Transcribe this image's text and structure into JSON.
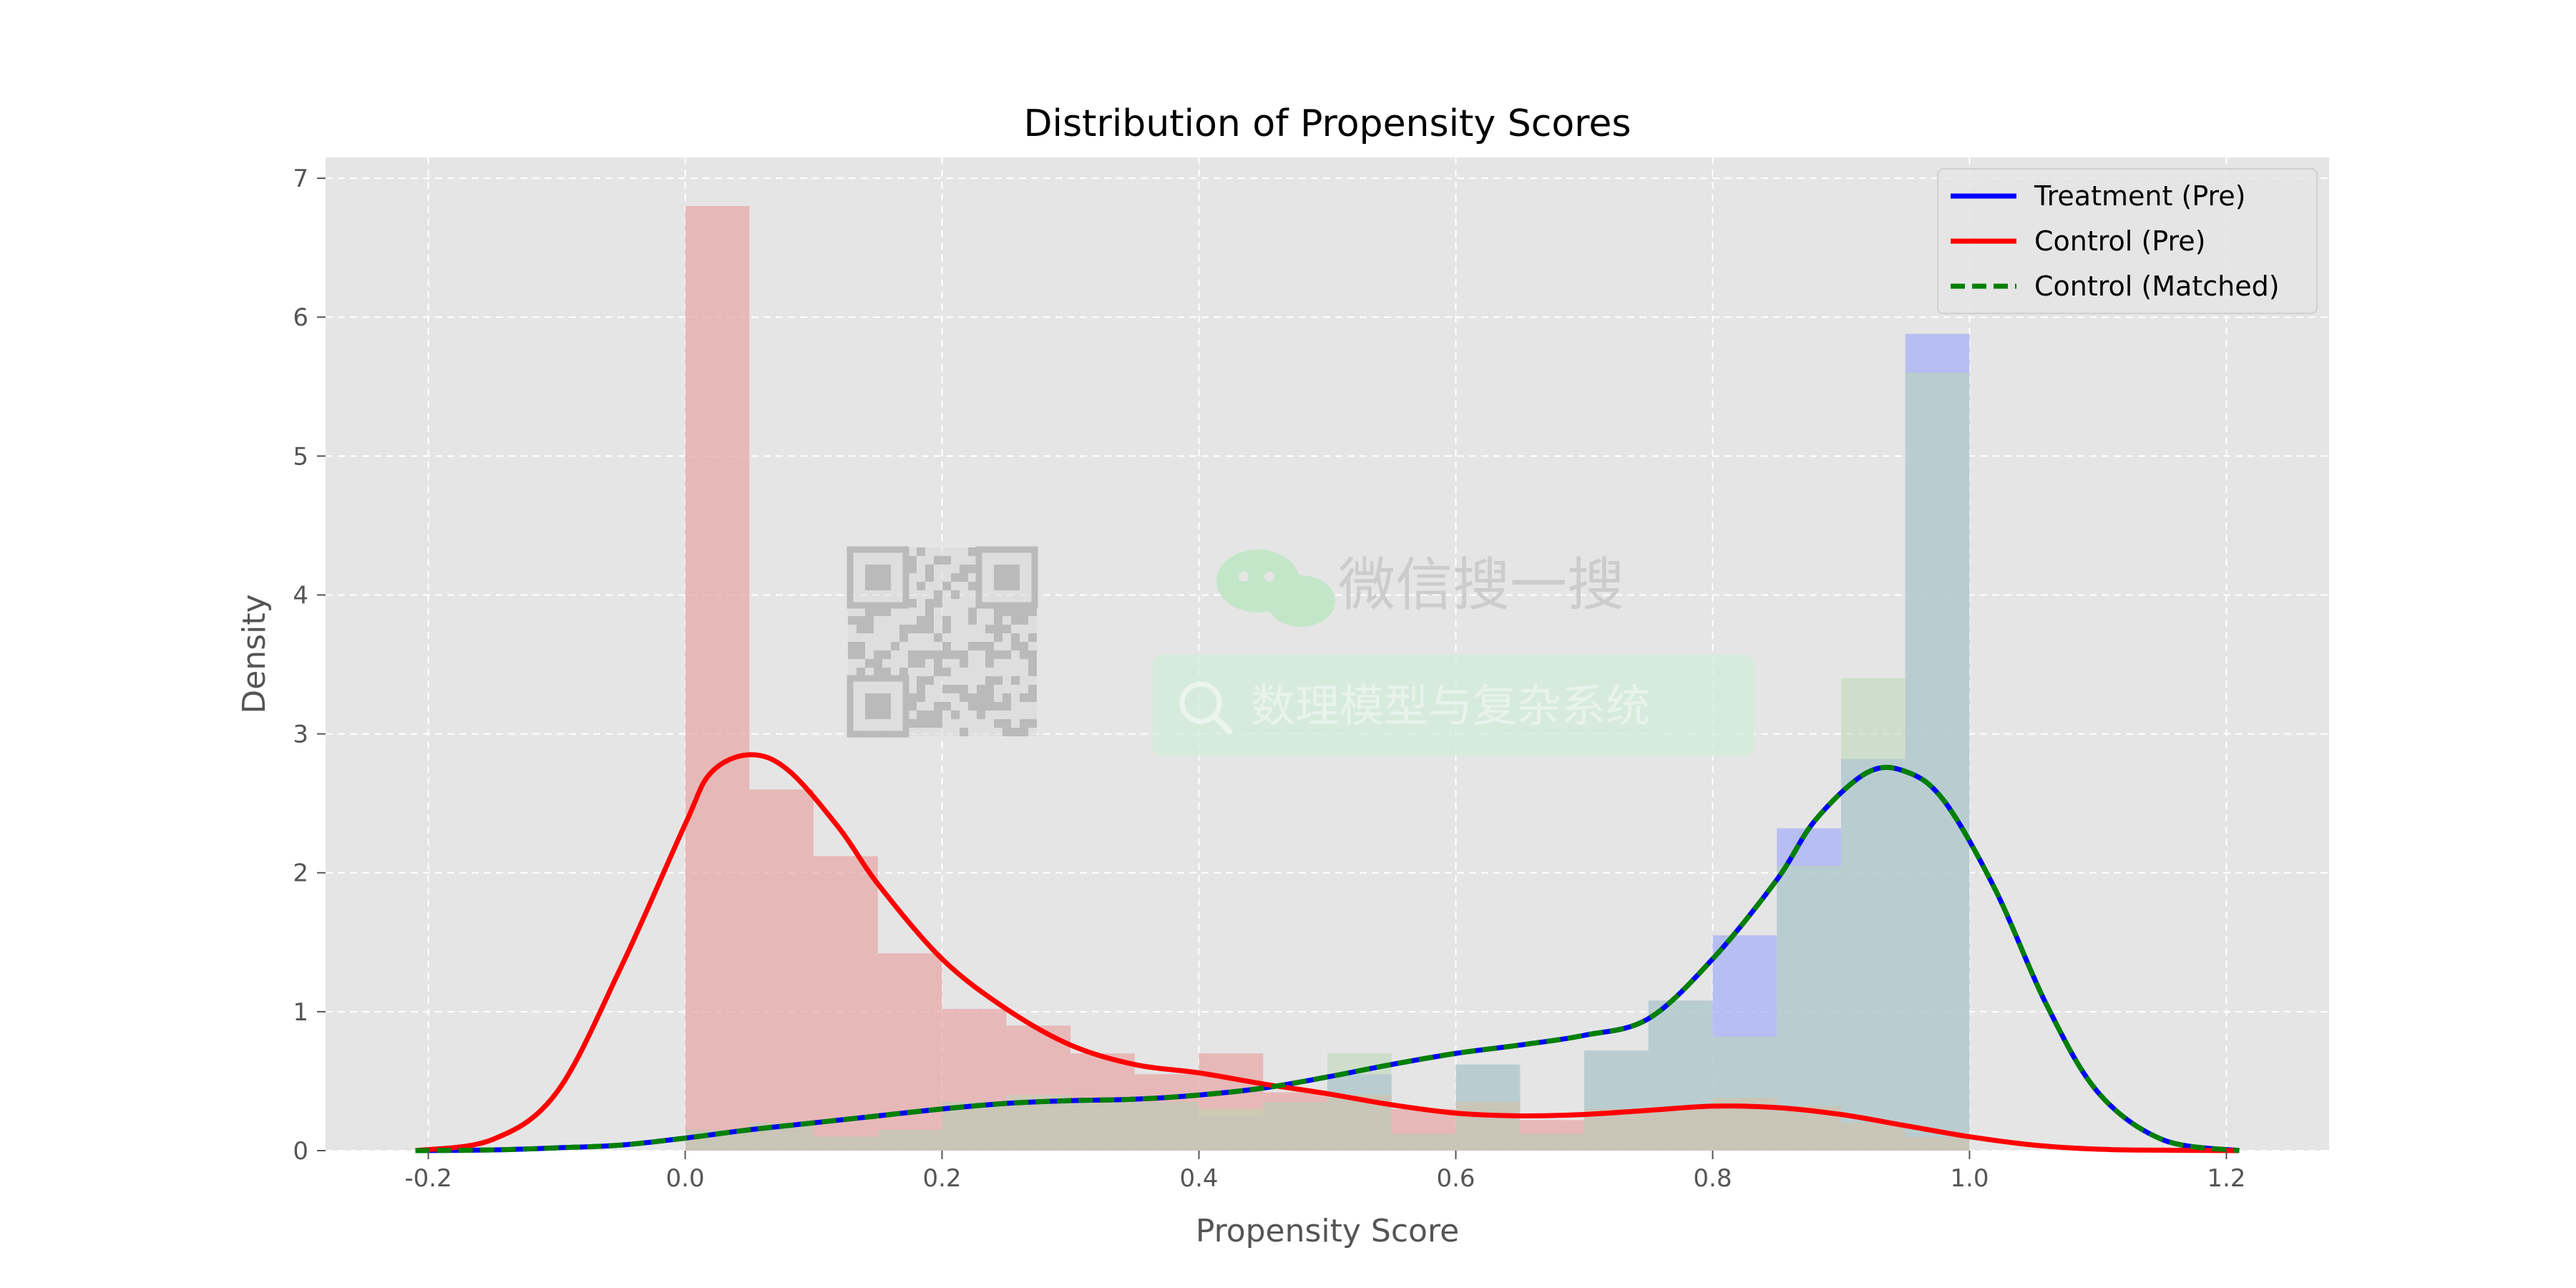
{
  "chart_data": {
    "type": "bar",
    "title": "Distribution of Propensity Scores",
    "xlabel": "Propensity Score",
    "ylabel": "Density",
    "xlim": [
      -0.28,
      1.28
    ],
    "ylim": [
      0,
      7.15
    ],
    "x_ticks": [
      -0.2,
      0.0,
      0.2,
      0.4,
      0.6,
      0.8,
      1.0,
      1.2
    ],
    "y_ticks": [
      0,
      1,
      2,
      3,
      4,
      5,
      6,
      7
    ],
    "grid": true,
    "legend_position": "top-right",
    "bin_edges": [
      0.0,
      0.05,
      0.1,
      0.15,
      0.2,
      0.25,
      0.3,
      0.35,
      0.4,
      0.45,
      0.5,
      0.55,
      0.6,
      0.65,
      0.7,
      0.75,
      0.8,
      0.85,
      0.9,
      0.95,
      1.0
    ],
    "histograms": [
      {
        "series": "Treatment (Pre)",
        "color": "#aab4f5",
        "opacity": 0.78,
        "values": [
          0.15,
          0.2,
          0.1,
          0.15,
          0.35,
          0.35,
          0.35,
          0.35,
          0.25,
          0.35,
          0.55,
          0.12,
          0.62,
          0.12,
          0.72,
          1.08,
          1.55,
          2.32,
          2.82,
          5.88
        ]
      },
      {
        "series": "Control (Pre)",
        "color": "#e8a6a6",
        "opacity": 0.72,
        "values": [
          6.8,
          2.6,
          2.12,
          1.42,
          1.02,
          0.9,
          0.7,
          0.55,
          0.7,
          0.42,
          0.4,
          0.3,
          0.35,
          0.22,
          0.3,
          0.3,
          0.38,
          0.32,
          0.2,
          0.1
        ]
      },
      {
        "series": "Control (Matched)",
        "color": "#bcd9b5",
        "opacity": 0.55,
        "values": [
          0.15,
          0.2,
          0.1,
          0.15,
          0.35,
          0.4,
          0.35,
          0.35,
          0.3,
          0.35,
          0.7,
          0.12,
          0.62,
          0.12,
          0.72,
          1.08,
          0.82,
          2.05,
          3.4,
          5.6
        ]
      }
    ],
    "series": [
      {
        "name": "Treatment (Pre)",
        "color": "#0000ff",
        "style": "solid",
        "x": [
          -0.21,
          -0.15,
          -0.1,
          -0.05,
          0.0,
          0.05,
          0.1,
          0.15,
          0.2,
          0.25,
          0.3,
          0.35,
          0.4,
          0.45,
          0.5,
          0.55,
          0.6,
          0.65,
          0.7,
          0.75,
          0.8,
          0.85,
          0.88,
          0.92,
          0.95,
          0.98,
          1.02,
          1.06,
          1.1,
          1.15,
          1.21
        ],
        "y": [
          0.0,
          0.005,
          0.02,
          0.04,
          0.09,
          0.15,
          0.2,
          0.25,
          0.3,
          0.34,
          0.36,
          0.37,
          0.4,
          0.45,
          0.53,
          0.62,
          0.7,
          0.76,
          0.83,
          0.95,
          1.38,
          1.95,
          2.38,
          2.72,
          2.73,
          2.52,
          1.88,
          1.05,
          0.42,
          0.08,
          0.0
        ]
      },
      {
        "name": "Control (Pre)",
        "color": "#ff0000",
        "style": "solid",
        "x": [
          -0.21,
          -0.15,
          -0.1,
          -0.05,
          0.0,
          0.02,
          0.05,
          0.08,
          0.12,
          0.15,
          0.2,
          0.25,
          0.3,
          0.35,
          0.4,
          0.45,
          0.5,
          0.55,
          0.6,
          0.65,
          0.7,
          0.75,
          0.8,
          0.85,
          0.9,
          0.95,
          1.0,
          1.05,
          1.1,
          1.15,
          1.21
        ],
        "y": [
          0.0,
          0.08,
          0.42,
          1.32,
          2.35,
          2.72,
          2.85,
          2.74,
          2.32,
          1.92,
          1.38,
          1.02,
          0.76,
          0.62,
          0.56,
          0.48,
          0.41,
          0.33,
          0.27,
          0.25,
          0.26,
          0.29,
          0.32,
          0.31,
          0.26,
          0.18,
          0.1,
          0.04,
          0.01,
          0.003,
          0.0
        ]
      },
      {
        "name": "Control (Matched)",
        "color": "#008000",
        "style": "dashed",
        "x": [
          -0.21,
          -0.15,
          -0.1,
          -0.05,
          0.0,
          0.05,
          0.1,
          0.15,
          0.2,
          0.25,
          0.3,
          0.35,
          0.4,
          0.45,
          0.5,
          0.55,
          0.6,
          0.65,
          0.7,
          0.75,
          0.8,
          0.85,
          0.88,
          0.92,
          0.95,
          0.98,
          1.02,
          1.06,
          1.1,
          1.15,
          1.21
        ],
        "y": [
          0.0,
          0.005,
          0.02,
          0.04,
          0.09,
          0.15,
          0.2,
          0.25,
          0.3,
          0.34,
          0.36,
          0.37,
          0.4,
          0.45,
          0.53,
          0.62,
          0.7,
          0.76,
          0.83,
          0.95,
          1.38,
          1.95,
          2.38,
          2.72,
          2.73,
          2.52,
          1.88,
          1.05,
          0.42,
          0.08,
          0.0
        ]
      }
    ]
  },
  "watermark": {
    "brand_text": "微信搜一搜",
    "search_text": "数理模型与复杂系统",
    "icons": [
      "qr-code-icon",
      "wechat-icon",
      "search-icon"
    ]
  },
  "colors": {
    "plot_background": "#e5e5e5",
    "grid": "#ffffff"
  }
}
